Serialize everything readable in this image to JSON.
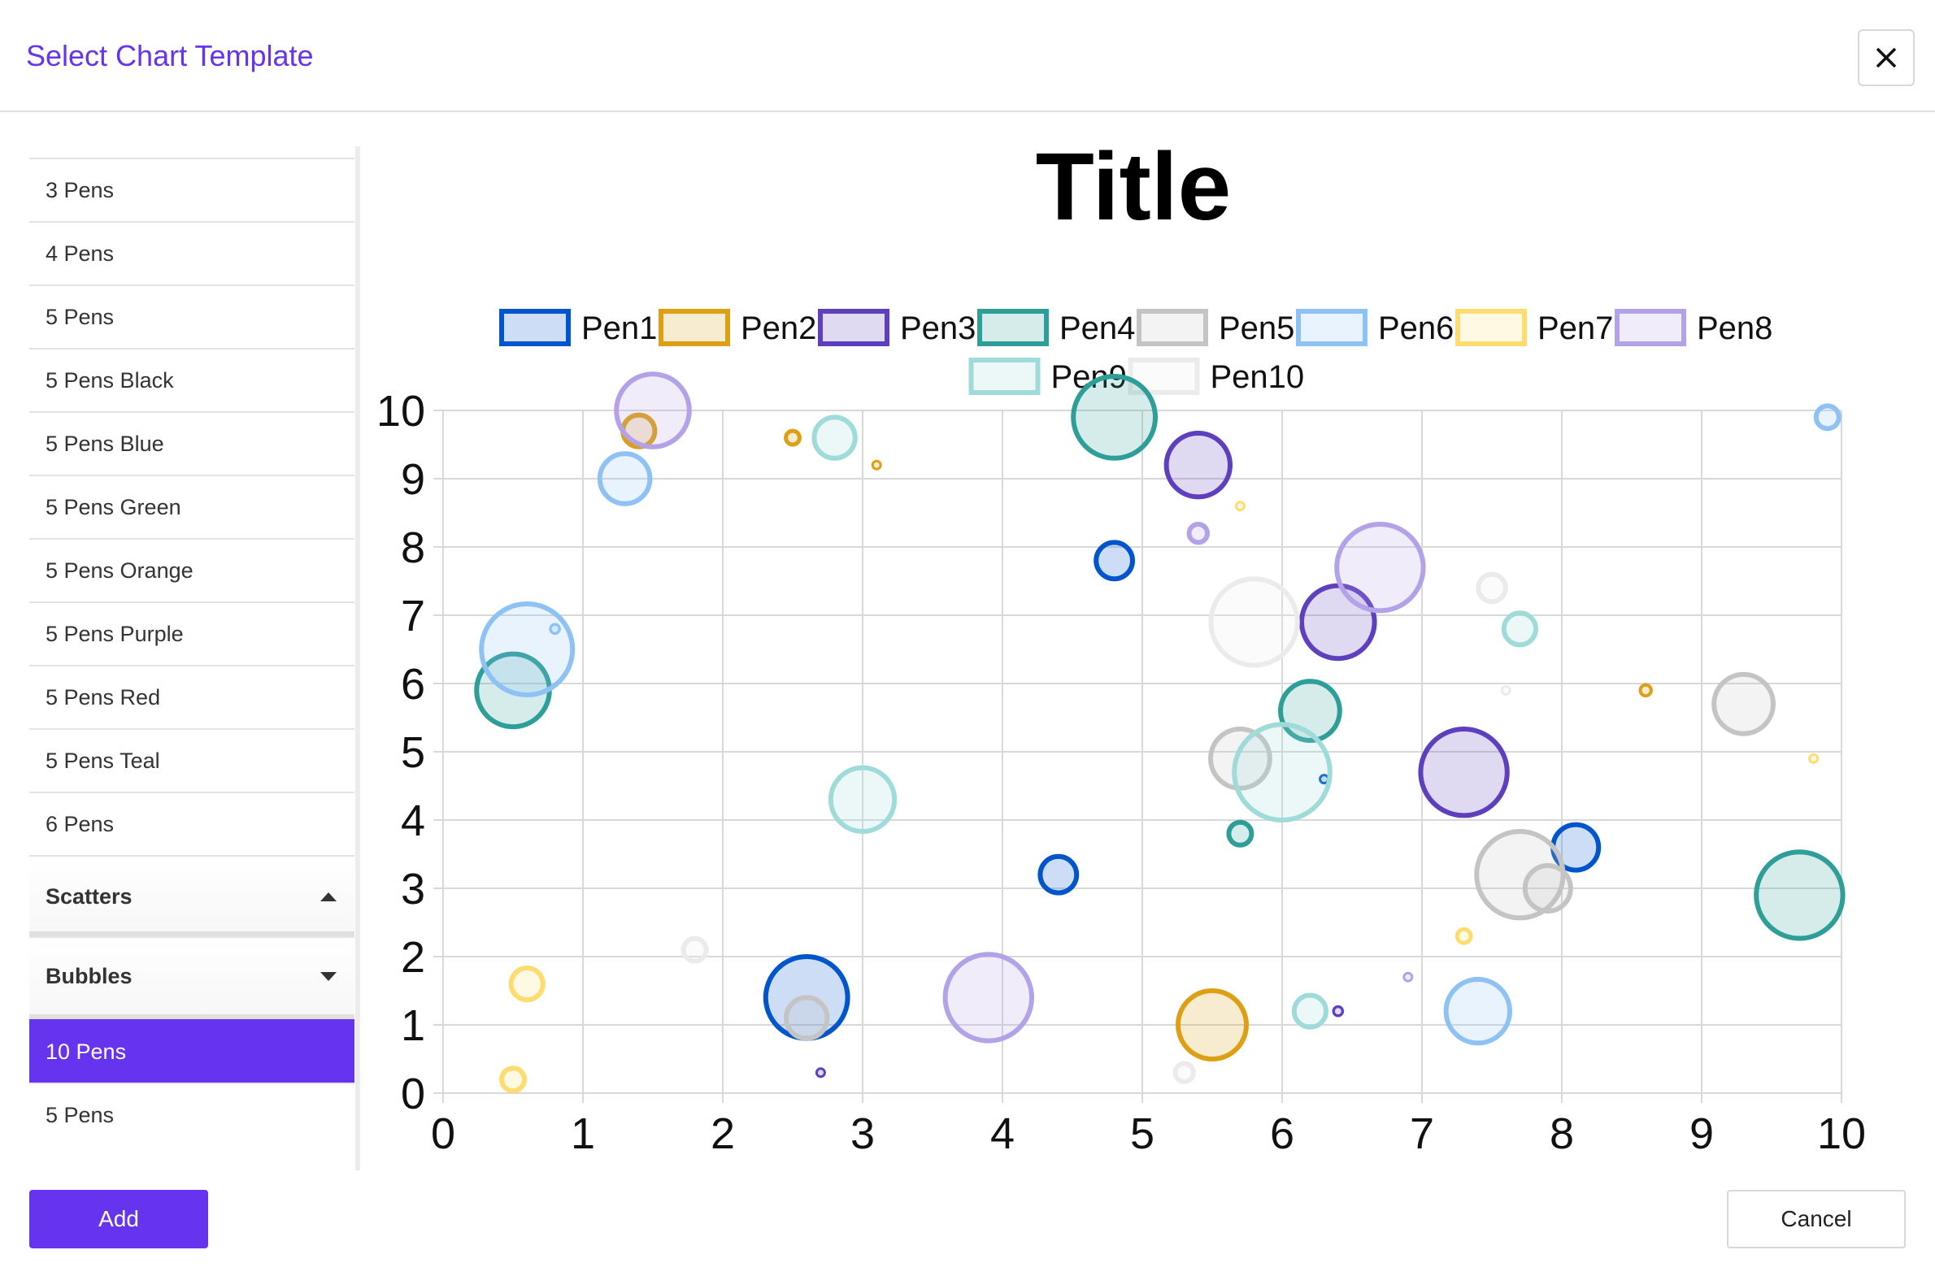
{
  "dialog": {
    "title": "Select Chart Template",
    "close_icon": "close-icon",
    "add_label": "Add",
    "cancel_label": "Cancel"
  },
  "sidebar": {
    "items": [
      "3 Pens",
      "4 Pens",
      "5 Pens",
      "5 Pens Black",
      "5 Pens Blue",
      "5 Pens Green",
      "5 Pens Orange",
      "5 Pens Purple",
      "5 Pens Red",
      "5 Pens Teal",
      "6 Pens"
    ],
    "groups": [
      {
        "label": "Scatters",
        "icon": "caret-up-icon",
        "expanded": false
      },
      {
        "label": "Bubbles",
        "icon": "caret-down-icon",
        "expanded": true,
        "items": [
          "10 Pens",
          "5 Pens"
        ],
        "selected": "10 Pens"
      }
    ]
  },
  "chart_data": {
    "type": "scatter",
    "title": "Title",
    "xlim": [
      0,
      10
    ],
    "ylim": [
      0,
      10
    ],
    "xticks": [
      0,
      1,
      2,
      3,
      4,
      5,
      6,
      7,
      8,
      9,
      10
    ],
    "yticks": [
      0,
      1,
      2,
      3,
      4,
      5,
      6,
      7,
      8,
      9,
      10
    ],
    "grid": true,
    "legend_position": "top",
    "series": [
      {
        "name": "Pen1",
        "stroke": "#0055cc",
        "fill": "rgba(0,85,204,0.2)",
        "points": [
          {
            "x": 2.6,
            "y": 1.4,
            "r": 9
          },
          {
            "x": 4.4,
            "y": 3.2,
            "r": 4
          },
          {
            "x": 4.8,
            "y": 7.8,
            "r": 4
          },
          {
            "x": 6.3,
            "y": 4.6,
            "r": 0.5
          },
          {
            "x": 8.1,
            "y": 3.6,
            "r": 5
          }
        ]
      },
      {
        "name": "Pen2",
        "stroke": "#dda015",
        "fill": "rgba(221,160,21,0.2)",
        "points": [
          {
            "x": 1.4,
            "y": 9.7,
            "r": 3.5
          },
          {
            "x": 2.5,
            "y": 9.6,
            "r": 1.5
          },
          {
            "x": 3.1,
            "y": 9.2,
            "r": 0.5
          },
          {
            "x": 5.5,
            "y": 1.0,
            "r": 7.5
          },
          {
            "x": 8.6,
            "y": 5.9,
            "r": 1.2
          }
        ]
      },
      {
        "name": "Pen3",
        "stroke": "#5e3fbe",
        "fill": "rgba(94,63,190,0.2)",
        "points": [
          {
            "x": 2.7,
            "y": 0.3,
            "r": 0.5
          },
          {
            "x": 5.4,
            "y": 9.2,
            "r": 7
          },
          {
            "x": 6.4,
            "y": 6.9,
            "r": 8
          },
          {
            "x": 6.4,
            "y": 1.2,
            "r": 1
          },
          {
            "x": 7.3,
            "y": 4.7,
            "r": 9.5
          }
        ]
      },
      {
        "name": "Pen4",
        "stroke": "#2e9e99",
        "fill": "rgba(46,158,153,0.2)",
        "points": [
          {
            "x": 0.5,
            "y": 5.9,
            "r": 8
          },
          {
            "x": 4.8,
            "y": 9.9,
            "r": 9
          },
          {
            "x": 5.7,
            "y": 3.8,
            "r": 2.5
          },
          {
            "x": 6.2,
            "y": 5.6,
            "r": 6.5
          },
          {
            "x": 9.7,
            "y": 2.9,
            "r": 9.5
          }
        ]
      },
      {
        "name": "Pen5",
        "stroke": "#c4c4c4",
        "fill": "rgba(196,196,196,0.2)",
        "points": [
          {
            "x": 2.6,
            "y": 1.1,
            "r": 4.5
          },
          {
            "x": 5.7,
            "y": 4.9,
            "r": 6.5
          },
          {
            "x": 7.7,
            "y": 3.2,
            "r": 9.5
          },
          {
            "x": 7.9,
            "y": 3.0,
            "r": 5
          },
          {
            "x": 9.3,
            "y": 5.7,
            "r": 6.5
          }
        ]
      },
      {
        "name": "Pen6",
        "stroke": "#8ec2f5",
        "fill": "rgba(142,194,245,0.2)",
        "points": [
          {
            "x": 0.6,
            "y": 6.5,
            "r": 10
          },
          {
            "x": 0.8,
            "y": 6.8,
            "r": 1
          },
          {
            "x": 1.3,
            "y": 9.0,
            "r": 5.5
          },
          {
            "x": 7.4,
            "y": 1.2,
            "r": 7
          },
          {
            "x": 9.9,
            "y": 9.9,
            "r": 2.5
          }
        ]
      },
      {
        "name": "Pen7",
        "stroke": "#fddd6f",
        "fill": "rgba(253,221,111,0.2)",
        "points": [
          {
            "x": 0.5,
            "y": 0.2,
            "r": 2.5
          },
          {
            "x": 0.6,
            "y": 1.6,
            "r": 3.5
          },
          {
            "x": 5.7,
            "y": 8.6,
            "r": 0.5
          },
          {
            "x": 7.3,
            "y": 2.3,
            "r": 1.5
          },
          {
            "x": 9.8,
            "y": 4.9,
            "r": 0.5
          }
        ]
      },
      {
        "name": "Pen8",
        "stroke": "#b4a2e8",
        "fill": "rgba(180,162,232,0.2)",
        "points": [
          {
            "x": 1.5,
            "y": 10.0,
            "r": 8
          },
          {
            "x": 3.9,
            "y": 1.4,
            "r": 9.5
          },
          {
            "x": 5.4,
            "y": 8.2,
            "r": 2
          },
          {
            "x": 6.7,
            "y": 7.7,
            "r": 9.5
          },
          {
            "x": 6.9,
            "y": 1.7,
            "r": 0.5
          }
        ]
      },
      {
        "name": "Pen9",
        "stroke": "#9fdbd9",
        "fill": "rgba(159,219,217,0.2)",
        "points": [
          {
            "x": 2.8,
            "y": 9.6,
            "r": 4.5
          },
          {
            "x": 3.0,
            "y": 4.3,
            "r": 7
          },
          {
            "x": 6.0,
            "y": 4.7,
            "r": 10.5
          },
          {
            "x": 6.2,
            "y": 1.2,
            "r": 3.5
          },
          {
            "x": 7.7,
            "y": 6.8,
            "r": 3.5
          }
        ]
      },
      {
        "name": "Pen10",
        "stroke": "#ebebeb",
        "fill": "rgba(235,235,235,0.2)",
        "points": [
          {
            "x": 1.8,
            "y": 2.1,
            "r": 2.5
          },
          {
            "x": 5.3,
            "y": 0.3,
            "r": 2
          },
          {
            "x": 5.8,
            "y": 6.9,
            "r": 9.5
          },
          {
            "x": 7.5,
            "y": 7.4,
            "r": 3
          },
          {
            "x": 7.6,
            "y": 5.9,
            "r": 0.5
          }
        ]
      }
    ]
  }
}
